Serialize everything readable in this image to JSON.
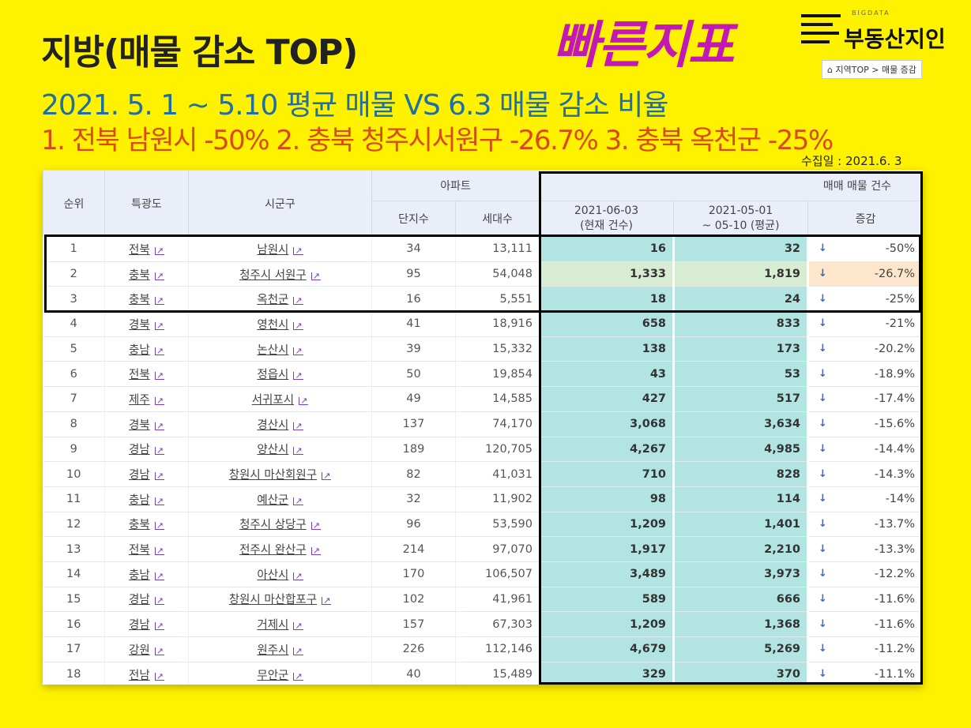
{
  "header": {
    "title": "지방(매물 감소 TOP)",
    "subtitle": "2021. 5. 1 ~ 5.10 평균 매물 VS 6.3 매물 감소 비율",
    "top3": "1. 전북 남원시 -50%  2. 충북 청주시서원구 -26.7%  3. 충북 옥천군 -25%",
    "badge": "빠른지표",
    "collect_date": "수집일 : 2021.6. 3"
  },
  "logo": {
    "small": "BIGDATA",
    "name": "부동산지인",
    "nav_home_icon": "home-icon",
    "nav": "지역TOP > 매물 증감"
  },
  "table": {
    "headers": {
      "rank": "순위",
      "province": "특광도",
      "city": "시군구",
      "apartment": "아파트",
      "complexes": "단지수",
      "households": "세대수",
      "listings": "매매 매물 건수",
      "current": "2021-06-03\n(현재 건수)",
      "average": "2021-05-01\n~ 05-10 (평균)",
      "change": "증감"
    },
    "rows": [
      {
        "rank": "1",
        "province": "전북",
        "city": "남원시",
        "complexes": "34",
        "households": "13,111",
        "current": "16",
        "average": "32",
        "change": "-50%"
      },
      {
        "rank": "2",
        "province": "충북",
        "city": "청주시 서원구",
        "complexes": "95",
        "households": "54,048",
        "current": "1,333",
        "average": "1,819",
        "change": "-26.7%"
      },
      {
        "rank": "3",
        "province": "충북",
        "city": "옥천군",
        "complexes": "16",
        "households": "5,551",
        "current": "18",
        "average": "24",
        "change": "-25%"
      },
      {
        "rank": "4",
        "province": "경북",
        "city": "영천시",
        "complexes": "41",
        "households": "18,916",
        "current": "658",
        "average": "833",
        "change": "-21%"
      },
      {
        "rank": "5",
        "province": "충남",
        "city": "논산시",
        "complexes": "39",
        "households": "15,332",
        "current": "138",
        "average": "173",
        "change": "-20.2%"
      },
      {
        "rank": "6",
        "province": "전북",
        "city": "정읍시",
        "complexes": "50",
        "households": "19,854",
        "current": "43",
        "average": "53",
        "change": "-18.9%"
      },
      {
        "rank": "7",
        "province": "제주",
        "city": "서귀포시",
        "complexes": "49",
        "households": "14,585",
        "current": "427",
        "average": "517",
        "change": "-17.4%"
      },
      {
        "rank": "8",
        "province": "경북",
        "city": "경산시",
        "complexes": "137",
        "households": "74,170",
        "current": "3,068",
        "average": "3,634",
        "change": "-15.6%"
      },
      {
        "rank": "9",
        "province": "경남",
        "city": "양산시",
        "complexes": "189",
        "households": "120,705",
        "current": "4,267",
        "average": "4,985",
        "change": "-14.4%"
      },
      {
        "rank": "10",
        "province": "경남",
        "city": "창원시 마산회원구",
        "complexes": "82",
        "households": "41,031",
        "current": "710",
        "average": "828",
        "change": "-14.3%"
      },
      {
        "rank": "11",
        "province": "충남",
        "city": "예산군",
        "complexes": "32",
        "households": "11,902",
        "current": "98",
        "average": "114",
        "change": "-14%"
      },
      {
        "rank": "12",
        "province": "충북",
        "city": "청주시 상당구",
        "complexes": "96",
        "households": "53,590",
        "current": "1,209",
        "average": "1,401",
        "change": "-13.7%"
      },
      {
        "rank": "13",
        "province": "전북",
        "city": "전주시 완산구",
        "complexes": "214",
        "households": "97,070",
        "current": "1,917",
        "average": "2,210",
        "change": "-13.3%"
      },
      {
        "rank": "14",
        "province": "충남",
        "city": "아산시",
        "complexes": "170",
        "households": "106,507",
        "current": "3,489",
        "average": "3,973",
        "change": "-12.2%"
      },
      {
        "rank": "15",
        "province": "경남",
        "city": "창원시 마산합포구",
        "complexes": "102",
        "households": "41,961",
        "current": "589",
        "average": "666",
        "change": "-11.6%"
      },
      {
        "rank": "16",
        "province": "경남",
        "city": "거제시",
        "complexes": "157",
        "households": "67,303",
        "current": "1,209",
        "average": "1,368",
        "change": "-11.6%"
      },
      {
        "rank": "17",
        "province": "강원",
        "city": "원주시",
        "complexes": "226",
        "households": "112,146",
        "current": "4,679",
        "average": "5,269",
        "change": "-11.2%"
      },
      {
        "rank": "18",
        "province": "전남",
        "city": "무안군",
        "complexes": "40",
        "households": "15,489",
        "current": "329",
        "average": "370",
        "change": "-11.1%"
      }
    ],
    "highlight_rank": "2",
    "down_arrow": "↓",
    "chart_link_icon": "line-chart-icon"
  },
  "colors": {
    "background": "#fff200",
    "badge": "#c218b6",
    "subtitle": "#1f6fa3",
    "ranks": "#d94a16",
    "listing_cell": "#b2e5e2"
  }
}
